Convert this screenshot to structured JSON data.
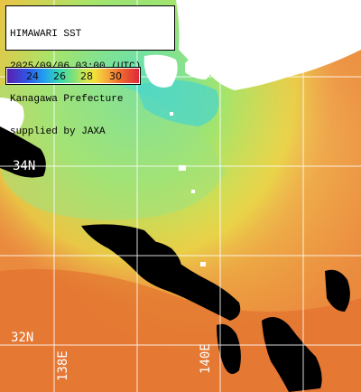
{
  "title": {
    "line1": "HIMAWARI SST",
    "line2": "2025/09/06 03:00 (UTC)",
    "line3": "Kanagawa Prefecture",
    "line4": "supplied by JAXA"
  },
  "legend": {
    "ticks": [
      "24",
      "26",
      "28",
      "30"
    ],
    "colors": [
      "#5b1fb0",
      "#2f55e6",
      "#22a0f0",
      "#38d9b0",
      "#7be07a",
      "#f2e23a",
      "#f6a83a",
      "#ee6a2e",
      "#e0283a"
    ]
  },
  "grid_labels": {
    "lat_34": "34N",
    "lat_32": "32N",
    "lon_138": "138E",
    "lon_140": "140E"
  },
  "colors": {
    "land": "#ffffff",
    "cloud_mask": "#000000",
    "grid": "#ffffff"
  }
}
